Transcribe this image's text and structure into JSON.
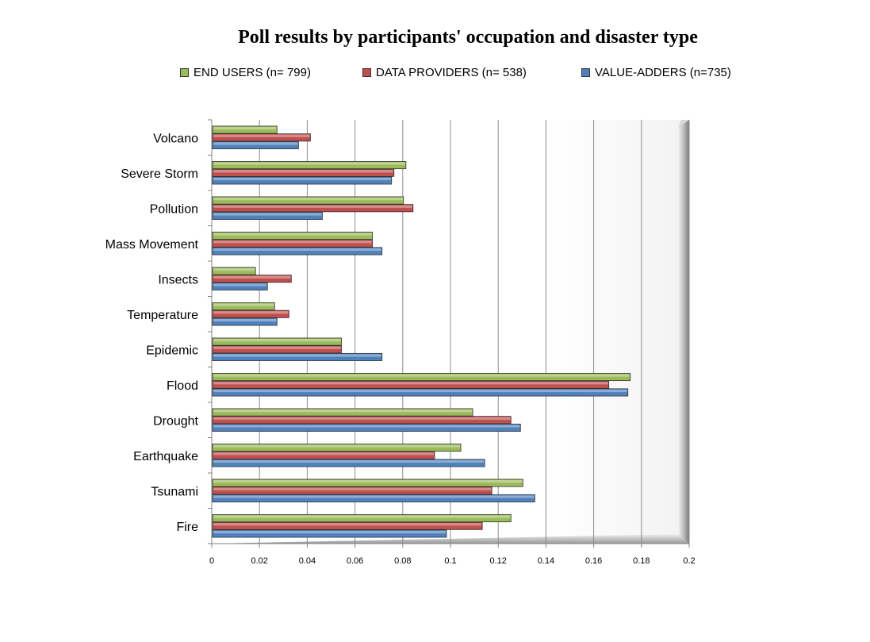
{
  "chart_data": {
    "type": "bar",
    "orientation": "horizontal",
    "title": "Poll results by participants' occupation and disaster type",
    "xlabel": "",
    "ylabel": "",
    "xlim": [
      0,
      0.2
    ],
    "x_ticks": [
      "0",
      "0.02",
      "0.04",
      "0.06",
      "0.08",
      "0.1",
      "0.12",
      "0.14",
      "0.16",
      "0.18",
      "0.2"
    ],
    "grid": true,
    "legend_position": "top",
    "categories": [
      "Volcano",
      "Severe Storm",
      "Pollution",
      "Mass Movement",
      "Insects",
      "Temperature",
      "Epidemic",
      "Flood",
      "Drought",
      "Earthquake",
      "Tsunami",
      "Fire"
    ],
    "series": [
      {
        "name": "END USERS (n= 799)",
        "color": "#9bbb59",
        "values": [
          0.027,
          0.081,
          0.08,
          0.067,
          0.018,
          0.026,
          0.054,
          0.175,
          0.109,
          0.104,
          0.13,
          0.125
        ]
      },
      {
        "name": "DATA PROVIDERS (n= 538)",
        "color": "#c0504d",
        "values": [
          0.041,
          0.076,
          0.084,
          0.067,
          0.033,
          0.032,
          0.054,
          0.166,
          0.125,
          0.093,
          0.117,
          0.113
        ]
      },
      {
        "name": "VALUE-ADDERS (n=735)",
        "color": "#4f81bd",
        "values": [
          0.036,
          0.075,
          0.046,
          0.071,
          0.023,
          0.027,
          0.071,
          0.174,
          0.129,
          0.114,
          0.135,
          0.098
        ]
      }
    ]
  }
}
